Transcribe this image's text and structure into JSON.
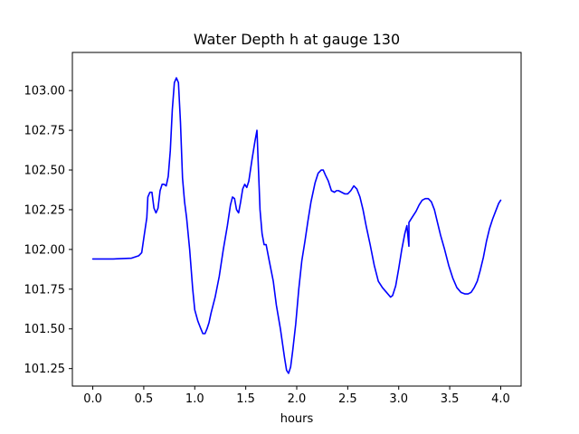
{
  "chart_data": {
    "type": "line",
    "title": "Water Depth h at gauge 130",
    "xlabel": "hours",
    "ylabel": "",
    "xlim": [
      -0.2,
      4.2
    ],
    "ylim": [
      101.14,
      103.24
    ],
    "xticks": [
      0.0,
      0.5,
      1.0,
      1.5,
      2.0,
      2.5,
      3.0,
      3.5,
      4.0
    ],
    "xtick_labels": [
      "0.0",
      "0.5",
      "1.0",
      "1.5",
      "2.0",
      "2.5",
      "3.0",
      "3.5",
      "4.0"
    ],
    "yticks": [
      101.25,
      101.5,
      101.75,
      102.0,
      102.25,
      102.5,
      102.75,
      103.0
    ],
    "ytick_labels": [
      "101.25",
      "101.50",
      "101.75",
      "102.00",
      "102.25",
      "102.50",
      "102.75",
      "103.00"
    ],
    "grid": false,
    "series": [
      {
        "color": "#0000ff",
        "points": [
          [
            0.0,
            101.94
          ],
          [
            0.2,
            101.94
          ],
          [
            0.38,
            101.945
          ],
          [
            0.45,
            101.96
          ],
          [
            0.48,
            101.98
          ],
          [
            0.5,
            102.07
          ],
          [
            0.53,
            102.2
          ],
          [
            0.54,
            102.33
          ],
          [
            0.56,
            102.36
          ],
          [
            0.58,
            102.36
          ],
          [
            0.6,
            102.26
          ],
          [
            0.62,
            102.23
          ],
          [
            0.64,
            102.26
          ],
          [
            0.66,
            102.37
          ],
          [
            0.68,
            102.41
          ],
          [
            0.7,
            102.41
          ],
          [
            0.72,
            102.4
          ],
          [
            0.74,
            102.46
          ],
          [
            0.76,
            102.62
          ],
          [
            0.78,
            102.88
          ],
          [
            0.8,
            103.05
          ],
          [
            0.82,
            103.08
          ],
          [
            0.84,
            103.05
          ],
          [
            0.86,
            102.8
          ],
          [
            0.88,
            102.45
          ],
          [
            0.9,
            102.3
          ],
          [
            0.92,
            102.2
          ],
          [
            0.95,
            102.0
          ],
          [
            0.98,
            101.75
          ],
          [
            1.0,
            101.62
          ],
          [
            1.03,
            101.55
          ],
          [
            1.06,
            101.5
          ],
          [
            1.08,
            101.47
          ],
          [
            1.1,
            101.47
          ],
          [
            1.12,
            101.5
          ],
          [
            1.14,
            101.54
          ],
          [
            1.16,
            101.6
          ],
          [
            1.2,
            101.7
          ],
          [
            1.24,
            101.83
          ],
          [
            1.28,
            102.0
          ],
          [
            1.32,
            102.15
          ],
          [
            1.35,
            102.28
          ],
          [
            1.37,
            102.33
          ],
          [
            1.39,
            102.32
          ],
          [
            1.41,
            102.25
          ],
          [
            1.43,
            102.23
          ],
          [
            1.45,
            102.3
          ],
          [
            1.47,
            102.38
          ],
          [
            1.49,
            102.41
          ],
          [
            1.51,
            102.39
          ],
          [
            1.53,
            102.43
          ],
          [
            1.56,
            102.56
          ],
          [
            1.59,
            102.68
          ],
          [
            1.61,
            102.75
          ],
          [
            1.625,
            102.5
          ],
          [
            1.64,
            102.25
          ],
          [
            1.66,
            102.1
          ],
          [
            1.68,
            102.03
          ],
          [
            1.7,
            102.03
          ],
          [
            1.73,
            101.93
          ],
          [
            1.77,
            101.8
          ],
          [
            1.8,
            101.65
          ],
          [
            1.84,
            101.5
          ],
          [
            1.88,
            101.32
          ],
          [
            1.9,
            101.24
          ],
          [
            1.92,
            101.22
          ],
          [
            1.94,
            101.26
          ],
          [
            1.96,
            101.36
          ],
          [
            1.99,
            101.53
          ],
          [
            2.02,
            101.75
          ],
          [
            2.05,
            101.93
          ],
          [
            2.08,
            102.05
          ],
          [
            2.11,
            102.18
          ],
          [
            2.14,
            102.3
          ],
          [
            2.18,
            102.42
          ],
          [
            2.21,
            102.48
          ],
          [
            2.24,
            102.5
          ],
          [
            2.26,
            102.5
          ],
          [
            2.28,
            102.47
          ],
          [
            2.31,
            102.43
          ],
          [
            2.34,
            102.37
          ],
          [
            2.37,
            102.36
          ],
          [
            2.39,
            102.37
          ],
          [
            2.41,
            102.37
          ],
          [
            2.44,
            102.36
          ],
          [
            2.47,
            102.35
          ],
          [
            2.5,
            102.35
          ],
          [
            2.53,
            102.37
          ],
          [
            2.56,
            102.4
          ],
          [
            2.59,
            102.38
          ],
          [
            2.62,
            102.33
          ],
          [
            2.65,
            102.25
          ],
          [
            2.68,
            102.15
          ],
          [
            2.72,
            102.03
          ],
          [
            2.76,
            101.9
          ],
          [
            2.8,
            101.8
          ],
          [
            2.84,
            101.76
          ],
          [
            2.88,
            101.73
          ],
          [
            2.92,
            101.7
          ],
          [
            2.94,
            101.71
          ],
          [
            2.97,
            101.77
          ],
          [
            3.0,
            101.88
          ],
          [
            3.03,
            102.0
          ],
          [
            3.06,
            102.1
          ],
          [
            3.08,
            102.15
          ],
          [
            3.1,
            102.02
          ],
          [
            3.1,
            102.17
          ],
          [
            3.13,
            102.2
          ],
          [
            3.17,
            102.24
          ],
          [
            3.2,
            102.28
          ],
          [
            3.23,
            102.31
          ],
          [
            3.26,
            102.32
          ],
          [
            3.29,
            102.32
          ],
          [
            3.32,
            102.3
          ],
          [
            3.35,
            102.25
          ],
          [
            3.38,
            102.17
          ],
          [
            3.41,
            102.09
          ],
          [
            3.45,
            102.0
          ],
          [
            3.49,
            101.9
          ],
          [
            3.53,
            101.82
          ],
          [
            3.57,
            101.76
          ],
          [
            3.61,
            101.73
          ],
          [
            3.65,
            101.72
          ],
          [
            3.68,
            101.72
          ],
          [
            3.71,
            101.73
          ],
          [
            3.74,
            101.76
          ],
          [
            3.77,
            101.8
          ],
          [
            3.8,
            101.87
          ],
          [
            3.83,
            101.95
          ],
          [
            3.86,
            102.05
          ],
          [
            3.89,
            102.13
          ],
          [
            3.92,
            102.19
          ],
          [
            3.95,
            102.24
          ],
          [
            3.98,
            102.29
          ],
          [
            4.0,
            102.31
          ]
        ]
      }
    ]
  }
}
